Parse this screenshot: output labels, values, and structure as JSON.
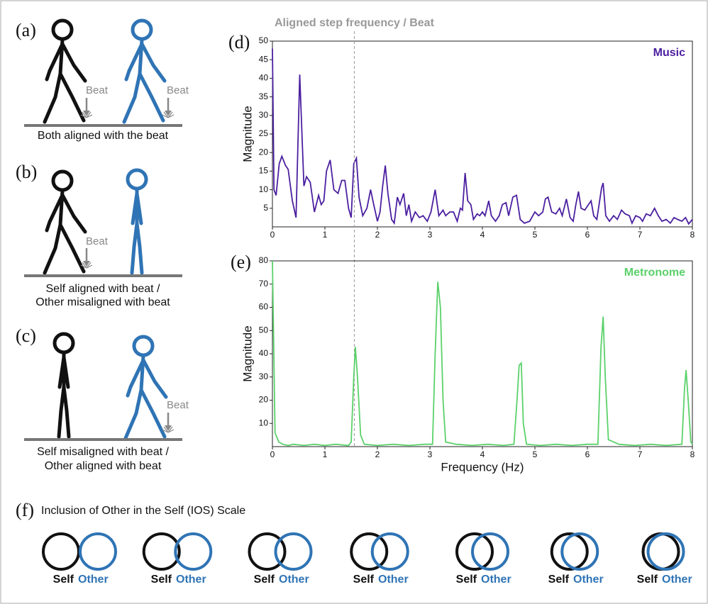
{
  "chart_data": [
    {
      "type": "line",
      "panel_label": "(d)",
      "annotation": {
        "text": "Aligned step frequency / Beat",
        "x": 1.56
      },
      "ylabel": "Magnitude",
      "xlim": [
        0,
        8
      ],
      "ylim": [
        0,
        50
      ],
      "xticks": [
        0,
        1,
        2,
        3,
        4,
        5,
        6,
        7,
        8
      ],
      "yticks": [
        5,
        10,
        15,
        20,
        25,
        30,
        35,
        40,
        45,
        50
      ],
      "series": [
        {
          "name": "Music",
          "color": "#4b1fa0",
          "x": [
            0,
            0.03,
            0.07,
            0.13,
            0.18,
            0.25,
            0.3,
            0.38,
            0.45,
            0.52,
            0.6,
            0.65,
            0.72,
            0.8,
            0.88,
            0.93,
            0.98,
            1.03,
            1.1,
            1.17,
            1.25,
            1.32,
            1.38,
            1.45,
            1.5,
            1.55,
            1.6,
            1.65,
            1.72,
            1.8,
            1.87,
            1.93,
            2.0,
            2.05,
            2.1,
            2.15,
            2.2,
            2.27,
            2.32,
            2.38,
            2.43,
            2.5,
            2.55,
            2.6,
            2.65,
            2.72,
            2.8,
            2.87,
            2.95,
            3.02,
            3.1,
            3.17,
            3.25,
            3.3,
            3.38,
            3.45,
            3.52,
            3.58,
            3.62,
            3.67,
            3.72,
            3.78,
            3.83,
            3.9,
            3.95,
            4.0,
            4.05,
            4.12,
            4.17,
            4.25,
            4.32,
            4.38,
            4.45,
            4.5,
            4.58,
            4.65,
            4.72,
            4.8,
            4.9,
            5.0,
            5.07,
            5.15,
            5.2,
            5.25,
            5.32,
            5.4,
            5.47,
            5.52,
            5.6,
            5.67,
            5.73,
            5.78,
            5.83,
            5.88,
            5.95,
            6.02,
            6.07,
            6.12,
            6.18,
            6.27,
            6.3,
            6.35,
            6.42,
            6.5,
            6.57,
            6.65,
            6.72,
            6.8,
            6.85,
            6.92,
            7.0,
            7.05,
            7.12,
            7.2,
            7.28,
            7.35,
            7.42,
            7.5,
            7.58,
            7.65,
            7.72,
            7.8,
            7.87,
            7.93,
            8.0
          ],
          "values": [
            48,
            10,
            8.5,
            17,
            19,
            16.5,
            15.5,
            7,
            2.5,
            41,
            11,
            13.5,
            12,
            4,
            8.5,
            6,
            7,
            15,
            18,
            10,
            9,
            12.5,
            12.5,
            5,
            2.5,
            17,
            18.5,
            8,
            3,
            5,
            10,
            6,
            1.5,
            4,
            11,
            16.5,
            9,
            2,
            1,
            8,
            6,
            9,
            3,
            6,
            1.5,
            4,
            2.5,
            3,
            1.5,
            4,
            10,
            3,
            4.5,
            3,
            4,
            4,
            1.5,
            5,
            4.5,
            14.5,
            7,
            6,
            2,
            3.5,
            3,
            4,
            3,
            7,
            3,
            1.5,
            3,
            6,
            6.5,
            3,
            8,
            8.5,
            2,
            1,
            1.5,
            4,
            3,
            4,
            7.5,
            8,
            4,
            3.5,
            5,
            3,
            7.5,
            2.5,
            1.5,
            6,
            9.5,
            5,
            4.5,
            6,
            7,
            3,
            2,
            10.5,
            11.8,
            3,
            1.5,
            3,
            2,
            4.5,
            3.5,
            3,
            1,
            3,
            2.5,
            1.5,
            3.5,
            3,
            5,
            3,
            1.5,
            2,
            1,
            2.5,
            2,
            1.5,
            2.5,
            0.8,
            2
          ]
        }
      ]
    },
    {
      "type": "line",
      "panel_label": "(e)",
      "ylabel": "Magnitude",
      "xlabel": "Frequency (Hz)",
      "xlim": [
        0,
        8
      ],
      "ylim": [
        0,
        80
      ],
      "xticks": [
        0,
        1,
        2,
        3,
        4,
        5,
        6,
        7,
        8
      ],
      "yticks": [
        10,
        20,
        30,
        40,
        50,
        60,
        70,
        80
      ],
      "series": [
        {
          "name": "Metronome",
          "color": "#5bd16b",
          "x": [
            0,
            0.05,
            0.12,
            0.2,
            0.3,
            0.4,
            0.6,
            0.8,
            1.0,
            1.2,
            1.45,
            1.5,
            1.55,
            1.58,
            1.62,
            1.68,
            1.75,
            2.0,
            2.3,
            2.6,
            2.9,
            3.05,
            3.1,
            3.15,
            3.2,
            3.25,
            3.3,
            3.5,
            3.8,
            4.1,
            4.4,
            4.6,
            4.66,
            4.7,
            4.74,
            4.78,
            4.84,
            5.1,
            5.4,
            5.7,
            6.0,
            6.2,
            6.26,
            6.3,
            6.34,
            6.4,
            6.6,
            6.9,
            7.2,
            7.5,
            7.8,
            7.85,
            7.88,
            7.92,
            7.97,
            8.0
          ],
          "values": [
            80,
            6,
            2,
            1,
            0.5,
            1,
            0.5,
            1,
            0.5,
            1,
            0.5,
            2,
            30,
            43,
            30,
            5,
            1,
            0.5,
            1,
            0.5,
            1,
            1,
            40,
            71,
            60,
            20,
            2,
            1,
            0.5,
            1,
            0.5,
            1,
            20,
            35,
            36,
            10,
            1,
            0.5,
            1,
            0.5,
            1,
            1,
            43,
            56,
            30,
            3,
            1,
            0.5,
            1,
            0.5,
            1,
            25,
            33,
            20,
            2,
            1
          ]
        }
      ]
    }
  ],
  "panels": {
    "a": {
      "label": "(a)",
      "beat": "Beat",
      "caption": [
        "Both aligned with the beat"
      ]
    },
    "b": {
      "label": "(b)",
      "beat": "Beat",
      "caption": [
        "Self aligned with beat /",
        "Other misaligned with beat"
      ]
    },
    "c": {
      "label": "(c)",
      "beat": "Beat",
      "caption": [
        "Self misaligned with beat /",
        "Other aligned with beat"
      ]
    }
  },
  "ios": {
    "label": "(f)",
    "title": "Inclusion of Other in the Self (IOS) Scale",
    "self": "Self",
    "other": "Other"
  }
}
